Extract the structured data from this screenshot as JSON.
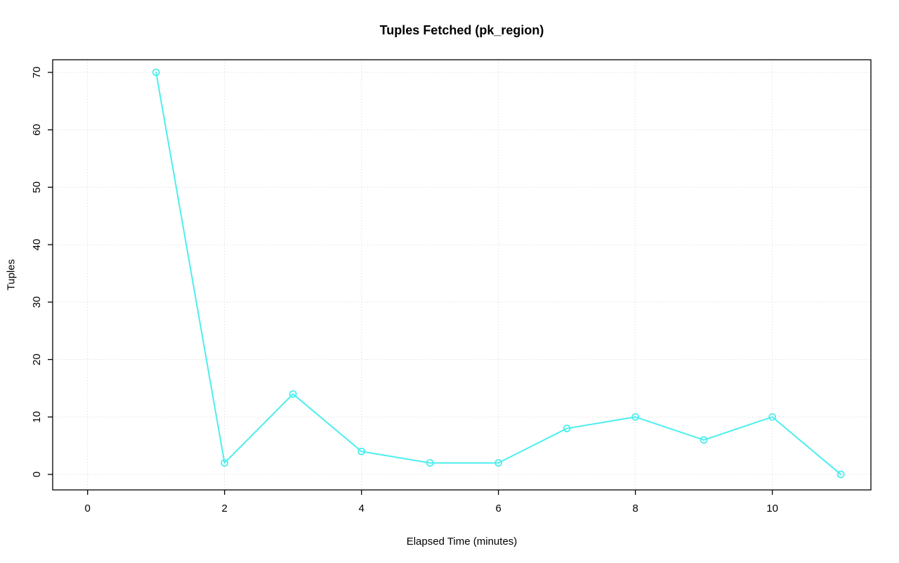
{
  "chart_data": {
    "type": "line",
    "title": "Tuples Fetched (pk_region)",
    "xlabel": "Elapsed Time (minutes)",
    "ylabel": "Tuples",
    "x": [
      1,
      2,
      3,
      4,
      5,
      6,
      7,
      8,
      9,
      10,
      11
    ],
    "values": [
      70,
      2,
      14,
      4,
      2,
      2,
      8,
      10,
      6,
      10,
      0
    ],
    "x_ticks": [
      0,
      2,
      4,
      6,
      8,
      10
    ],
    "y_ticks": [
      0,
      10,
      20,
      30,
      40,
      50,
      60,
      70
    ],
    "xlim": [
      -0.51,
      11.44
    ],
    "ylim": [
      -2.7,
      72.2
    ],
    "line_color": "#4DEEEE",
    "grid_color": "#D6D6D6",
    "axis_color": "#000000",
    "grid": true,
    "legend": null,
    "marker": "open-circle"
  }
}
